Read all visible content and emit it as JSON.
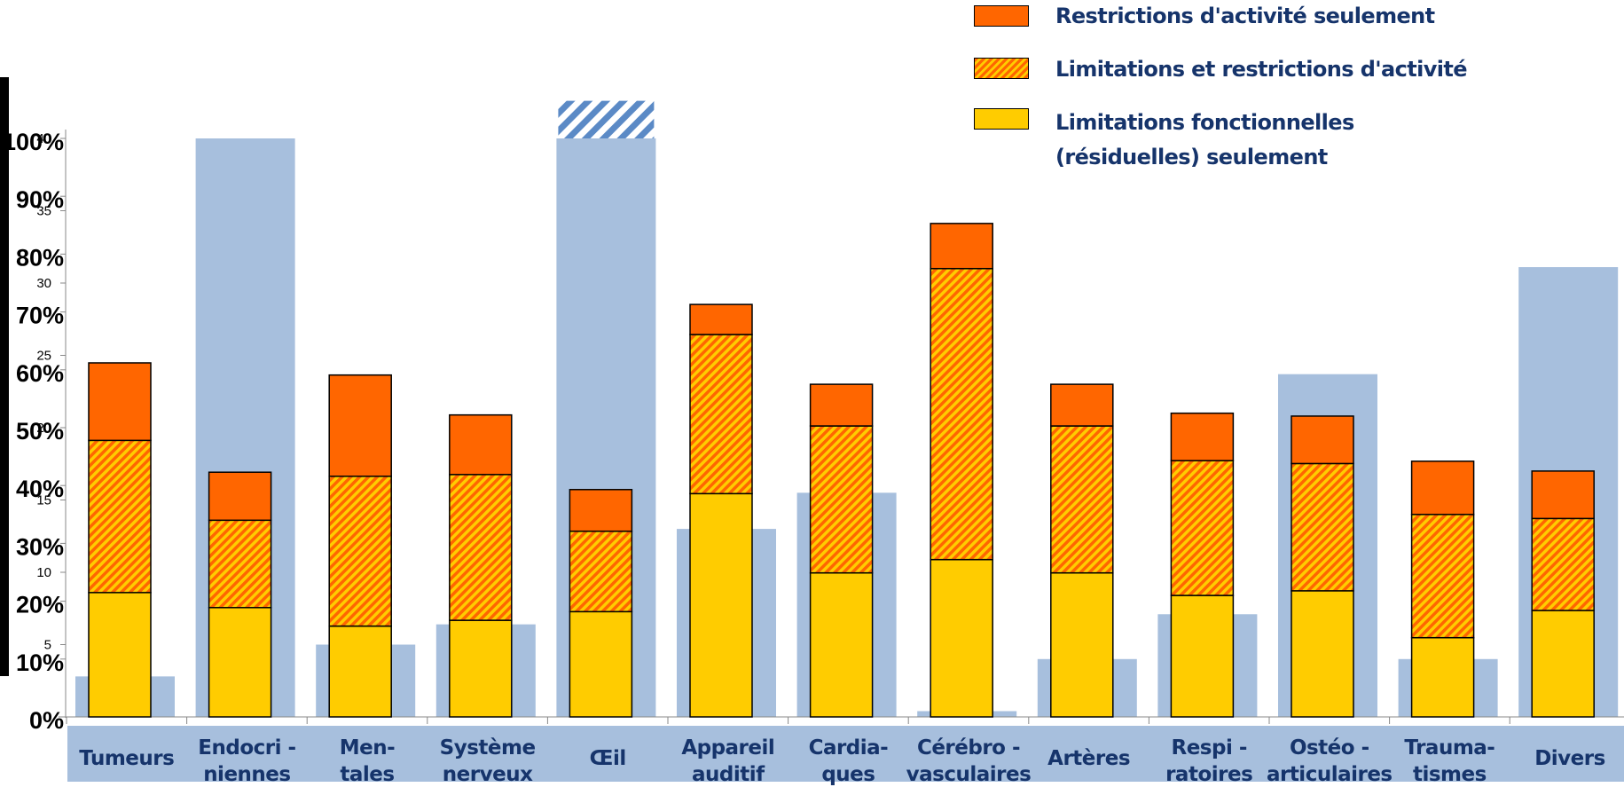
{
  "legend": {
    "restrictions": "Restrictions d'activité seulement",
    "limitations_restrictions": "Limitations et restrictions d'activité",
    "fonctionnelles_line1": "Limitations fonctionnelles",
    "fonctionnelles_line2": "(résiduelles) seulement"
  },
  "colors": {
    "restrictions": "#ff6600",
    "hatch_a": "#ff6600",
    "hatch_b": "#ffcc00",
    "fonctionnelles": "#ffcc00",
    "background_bars": "#a7bfdd",
    "overflow_hatch": "#5b8ac6",
    "category_band": "#a7bfdd",
    "legend_text": "#16346b"
  },
  "chart_data": {
    "type": "bar",
    "stacked": true,
    "y_percent_ticks": [
      "0%",
      "10%",
      "20%",
      "30%",
      "40%",
      "50%",
      "60%",
      "70%",
      "80%",
      "90%",
      "100%"
    ],
    "y_secondary_ticks": [
      "5",
      "10",
      "15",
      "20",
      "25",
      "30",
      "35",
      "40"
    ],
    "ylim_percent": [
      0,
      100
    ],
    "ylim_secondary": [
      0,
      40
    ],
    "categories": [
      [
        "Tumeurs"
      ],
      [
        "Endocri -",
        "niennes"
      ],
      [
        "Men-",
        "tales"
      ],
      [
        "Système",
        "nerveux"
      ],
      [
        "Œil"
      ],
      [
        "Appareil",
        "auditif"
      ],
      [
        "Cardia-",
        "ques"
      ],
      [
        "Cérébro -",
        "vasculaires"
      ],
      [
        "Artères"
      ],
      [
        "Respi -",
        "ratoires"
      ],
      [
        "Ostéo -",
        "articulaires"
      ],
      [
        "Trauma-",
        "tismes"
      ],
      [
        "Divers"
      ]
    ],
    "series": [
      {
        "name": "Limitations fonctionnelles (résiduelles) seulement",
        "values": [
          21.5,
          18.9,
          15.7,
          16.7,
          18.2,
          38.6,
          24.9,
          27.2,
          24.9,
          21.0,
          21.8,
          13.7,
          18.4
        ]
      },
      {
        "name": "Limitations et restrictions d'activité",
        "values": [
          26.3,
          15.1,
          25.9,
          25.2,
          13.9,
          27.5,
          25.4,
          50.3,
          25.4,
          23.3,
          22.0,
          21.3,
          15.9
        ]
      },
      {
        "name": "Restrictions d'activité seulement",
        "values": [
          13.4,
          8.3,
          17.5,
          10.3,
          7.2,
          5.2,
          7.2,
          7.8,
          7.2,
          8.2,
          8.2,
          9.2,
          8.2
        ]
      }
    ],
    "background_values": [
      2.8,
      40.0,
      5.0,
      6.4,
      40.0,
      13.0,
      15.5,
      0.4,
      4.0,
      7.1,
      23.7,
      4.0,
      31.1
    ],
    "background_overflow_top": 42.6
  }
}
